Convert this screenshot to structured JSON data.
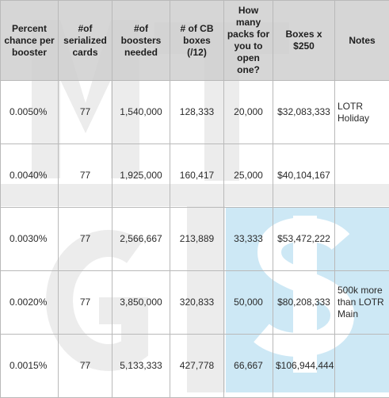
{
  "table": {
    "headers": [
      "Percent chance per booster",
      "#of serialized cards",
      "#of boosters needed",
      "# of CB boxes (/12)",
      "How many packs for you to open one?",
      "Boxes x $250",
      "Notes"
    ],
    "rows": [
      [
        "0.0050%",
        "77",
        "1,540,000",
        "128,333",
        "20,000",
        "$32,083,333",
        "LOTR Holiday"
      ],
      [
        "0.0040%",
        "77",
        "1,925,000",
        "160,417",
        "25,000",
        "$40,104,167",
        ""
      ],
      [
        "0.0030%",
        "77",
        "2,566,667",
        "213,889",
        "33,333",
        "$53,472,222",
        ""
      ],
      [
        "0.0020%",
        "77",
        "3,850,000",
        "320,833",
        "50,000",
        "$80,208,333",
        "500k more than LOTR Main"
      ],
      [
        "0.0015%",
        "77",
        "5,133,333",
        "427,778",
        "66,667",
        "$106,944,444",
        ""
      ]
    ]
  },
  "watermark": {
    "letters": [
      "M",
      "T",
      "G",
      "$"
    ],
    "colors": {
      "neutral": "#ececec",
      "blue": "#cde8f5"
    }
  }
}
